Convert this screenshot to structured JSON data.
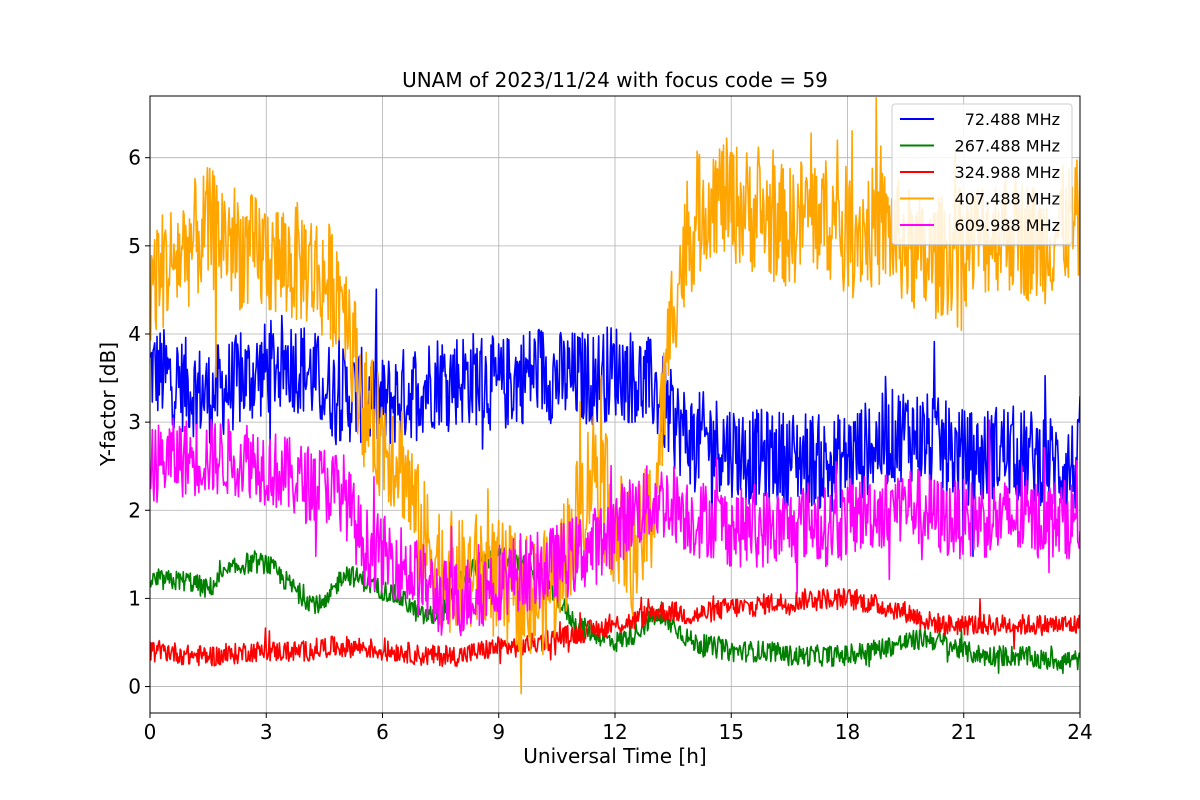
{
  "chart_data": {
    "type": "line",
    "title": "UNAM of 2023/11/24 with focus code = 59",
    "xlabel": "Universal Time [h]",
    "ylabel": "Y-factor [dB]",
    "xlim": [
      0,
      24
    ],
    "ylim": [
      -0.3,
      6.7
    ],
    "x_ticks": [
      0,
      3,
      6,
      9,
      12,
      15,
      18,
      21,
      24
    ],
    "y_ticks": [
      0,
      1,
      2,
      3,
      4,
      5,
      6
    ],
    "grid": true,
    "legend_position": "top-right",
    "series": [
      {
        "name": "72.488 MHz",
        "color": "#0000ff",
        "x": [
          0,
          0.5,
          1,
          1.5,
          2,
          2.5,
          3,
          3.5,
          4,
          4.5,
          5,
          5.5,
          6,
          6.5,
          7,
          7.5,
          8,
          8.5,
          9,
          9.5,
          10,
          10.5,
          11,
          11.5,
          12,
          12.5,
          13,
          13.5,
          14,
          14.5,
          15,
          15.5,
          16,
          16.5,
          17,
          17.5,
          18,
          18.5,
          19,
          19.5,
          20,
          20.5,
          21,
          21.5,
          22,
          22.5,
          23,
          23.5,
          24
        ],
        "y": [
          3.6,
          3.5,
          3.4,
          3.3,
          3.4,
          3.5,
          3.6,
          3.7,
          3.6,
          3.4,
          3.3,
          3.3,
          3.2,
          3.3,
          3.4,
          3.5,
          3.5,
          3.5,
          3.4,
          3.5,
          3.6,
          3.5,
          3.5,
          3.5,
          3.6,
          3.5,
          3.4,
          3.0,
          2.8,
          2.8,
          2.7,
          2.6,
          2.6,
          2.6,
          2.6,
          2.5,
          2.6,
          2.7,
          2.8,
          2.9,
          2.8,
          2.7,
          2.6,
          2.6,
          2.7,
          2.6,
          2.6,
          2.5,
          2.5
        ],
        "amplitude": 0.55
      },
      {
        "name": "267.488 MHz",
        "color": "#008000",
        "x": [
          0,
          0.5,
          1,
          1.5,
          2,
          2.5,
          3,
          3.5,
          4,
          4.5,
          5,
          5.5,
          6,
          6.5,
          7,
          7.5,
          8,
          8.5,
          9,
          9.5,
          10,
          10.5,
          11,
          11.5,
          12,
          12.5,
          13,
          13.5,
          14,
          14.5,
          15,
          15.5,
          16,
          16.5,
          17,
          17.5,
          18,
          18.5,
          19,
          19.5,
          20,
          20.5,
          21,
          21.5,
          22,
          22.5,
          23,
          23.5,
          24
        ],
        "y": [
          1.2,
          1.2,
          1.2,
          1.1,
          1.3,
          1.4,
          1.4,
          1.2,
          1.0,
          0.9,
          1.3,
          1.2,
          1.1,
          1.0,
          0.8,
          0.8,
          1.2,
          1.4,
          1.5,
          1.4,
          1.3,
          1.0,
          0.7,
          0.6,
          0.5,
          0.6,
          0.8,
          0.7,
          0.5,
          0.45,
          0.4,
          0.4,
          0.4,
          0.35,
          0.35,
          0.35,
          0.35,
          0.4,
          0.45,
          0.5,
          0.55,
          0.5,
          0.4,
          0.35,
          0.35,
          0.35,
          0.3,
          0.3,
          0.3
        ],
        "amplitude": 0.12
      },
      {
        "name": "324.988 MHz",
        "color": "#ff0000",
        "x": [
          0,
          0.5,
          1,
          1.5,
          2,
          2.5,
          3,
          3.5,
          4,
          4.5,
          5,
          5.5,
          6,
          6.5,
          7,
          7.5,
          8,
          8.5,
          9,
          9.5,
          10,
          10.5,
          11,
          11.5,
          12,
          12.5,
          13,
          13.5,
          14,
          14.5,
          15,
          15.5,
          16,
          16.5,
          17,
          17.5,
          18,
          18.5,
          19,
          19.5,
          20,
          20.5,
          21,
          21.5,
          22,
          22.5,
          23,
          23.5,
          24
        ],
        "y": [
          0.4,
          0.4,
          0.35,
          0.35,
          0.35,
          0.4,
          0.4,
          0.4,
          0.4,
          0.45,
          0.45,
          0.45,
          0.4,
          0.4,
          0.35,
          0.35,
          0.35,
          0.4,
          0.45,
          0.45,
          0.5,
          0.55,
          0.6,
          0.65,
          0.7,
          0.75,
          0.85,
          0.85,
          0.8,
          0.85,
          0.9,
          0.9,
          0.95,
          0.95,
          1.0,
          1.0,
          1.0,
          0.95,
          0.9,
          0.85,
          0.75,
          0.7,
          0.7,
          0.7,
          0.7,
          0.7,
          0.7,
          0.7,
          0.7
        ],
        "amplitude": 0.12
      },
      {
        "name": "407.488 MHz",
        "color": "#ffa500",
        "x": [
          0,
          0.5,
          1,
          1.5,
          2,
          2.5,
          3,
          3.5,
          4,
          4.5,
          5,
          5.5,
          6,
          6.5,
          7,
          7.5,
          8,
          8.5,
          9,
          9.5,
          10,
          10.5,
          11,
          11.5,
          12,
          12.5,
          13,
          13.5,
          14,
          14.5,
          15,
          15.5,
          16,
          16.5,
          17,
          17.5,
          18,
          18.5,
          19,
          19.5,
          20,
          20.5,
          21,
          21.5,
          22,
          22.5,
          23,
          23.5,
          24
        ],
        "y": [
          4.6,
          4.8,
          5.0,
          5.2,
          5.1,
          4.9,
          4.9,
          4.8,
          4.8,
          4.6,
          4.5,
          3.2,
          2.8,
          2.6,
          1.7,
          1.4,
          1.2,
          1.3,
          1.2,
          1.1,
          1.0,
          1.2,
          1.9,
          2.6,
          1.8,
          1.5,
          2.0,
          4.4,
          5.2,
          5.6,
          5.5,
          5.4,
          5.3,
          5.2,
          5.4,
          5.3,
          5.2,
          5.2,
          5.2,
          5.0,
          4.8,
          4.9,
          5.0,
          5.1,
          5.2,
          5.1,
          5.0,
          5.2,
          5.3
        ],
        "amplitude": 0.7
      },
      {
        "name": "609.988 MHz",
        "color": "#ff00ff",
        "x": [
          0,
          0.5,
          1,
          1.5,
          2,
          2.5,
          3,
          3.5,
          4,
          4.5,
          5,
          5.5,
          6,
          6.5,
          7,
          7.5,
          8,
          8.5,
          9,
          9.5,
          10,
          10.5,
          11,
          11.5,
          12,
          12.5,
          13,
          13.5,
          14,
          14.5,
          15,
          15.5,
          16,
          16.5,
          17,
          17.5,
          18,
          18.5,
          19,
          19.5,
          20,
          20.5,
          21,
          21.5,
          22,
          22.5,
          23,
          23.5,
          24
        ],
        "y": [
          2.5,
          2.6,
          2.6,
          2.6,
          2.6,
          2.6,
          2.5,
          2.4,
          2.3,
          2.3,
          2.2,
          1.6,
          1.5,
          1.4,
          1.2,
          1.0,
          1.0,
          1.1,
          1.2,
          1.3,
          1.3,
          1.4,
          1.5,
          1.6,
          1.8,
          2.0,
          2.1,
          2.1,
          1.9,
          1.9,
          1.8,
          1.8,
          1.8,
          1.8,
          1.9,
          1.8,
          1.9,
          2.0,
          2.0,
          2.1,
          2.0,
          1.9,
          1.9,
          1.9,
          1.9,
          1.9,
          1.9,
          1.9,
          1.9
        ],
        "amplitude": 0.45
      }
    ]
  }
}
